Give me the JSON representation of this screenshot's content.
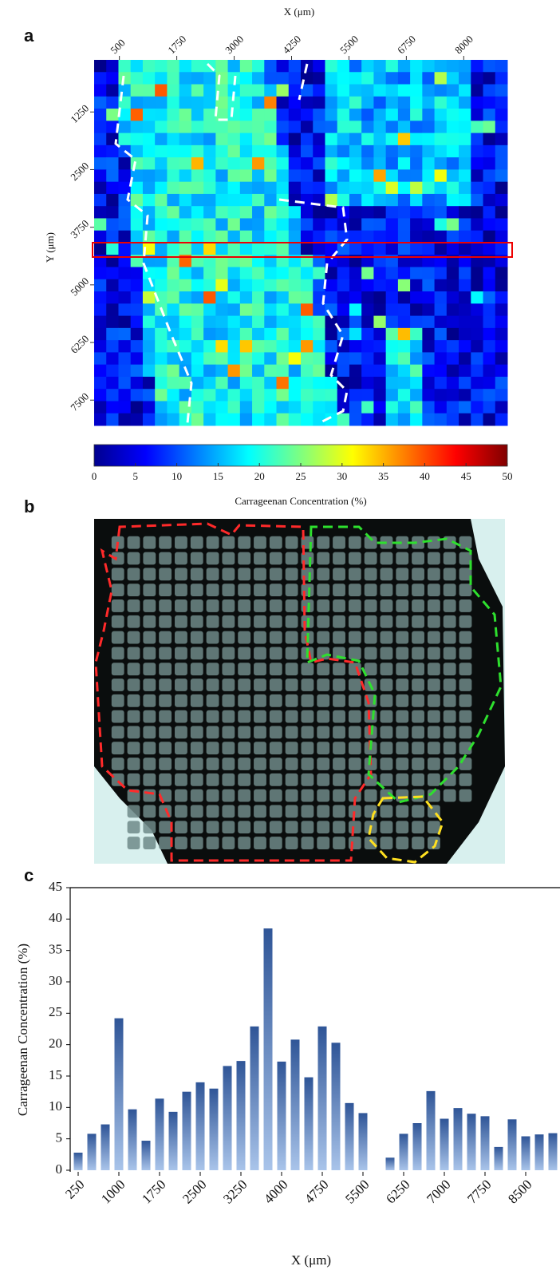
{
  "panel_labels": [
    "a",
    "b",
    "c"
  ],
  "chart_data": [
    {
      "type": "heatmap",
      "x_label": "X (μm)",
      "y_label": "Y (μm)",
      "xlim": [
        -50,
        8950
      ],
      "xticks": [
        500,
        1750,
        3000,
        4250,
        5500,
        6750,
        8000
      ],
      "ylim": [
        120,
        8050
      ],
      "yticks": [
        1250,
        2500,
        3750,
        5000,
        6250,
        7500
      ],
      "colorbar": {
        "label": "Carrageenan Concentration (%)",
        "lim": [
          0,
          50
        ],
        "ticks": [
          0,
          5,
          10,
          15,
          20,
          25,
          30,
          35,
          40,
          45,
          50
        ]
      }
    },
    {
      "type": "bar",
      "x_label": "X (μm)",
      "y_label": "Carrageenan Concentration (%)",
      "categories": [
        "250",
        null,
        null,
        "1000",
        null,
        null,
        "1750",
        null,
        null,
        "2500",
        null,
        null,
        "3250",
        null,
        null,
        "4000",
        null,
        null,
        "4750",
        null,
        null,
        "5500",
        null,
        null,
        "6250",
        null,
        null,
        "7000",
        null,
        null,
        "7750",
        null,
        null,
        "8500",
        null,
        null
      ],
      "values": [
        2.8,
        5.8,
        7.3,
        24.2,
        9.7,
        4.7,
        11.4,
        9.3,
        12.5,
        14,
        13,
        16.6,
        17.4,
        22.9,
        38.5,
        17.3,
        20.8,
        14.8,
        22.9,
        20.3,
        10.7,
        9.1,
        0,
        2,
        5.8,
        7.5,
        12.6,
        8.2,
        9.9,
        9,
        8.6,
        3.7,
        8.1,
        5.4,
        5.7,
        5.9
      ],
      "color": "#2f5597",
      "ylim": [
        0,
        45
      ],
      "yticks": [
        0,
        5,
        10,
        15,
        20,
        25,
        30,
        35,
        40,
        45
      ]
    }
  ]
}
